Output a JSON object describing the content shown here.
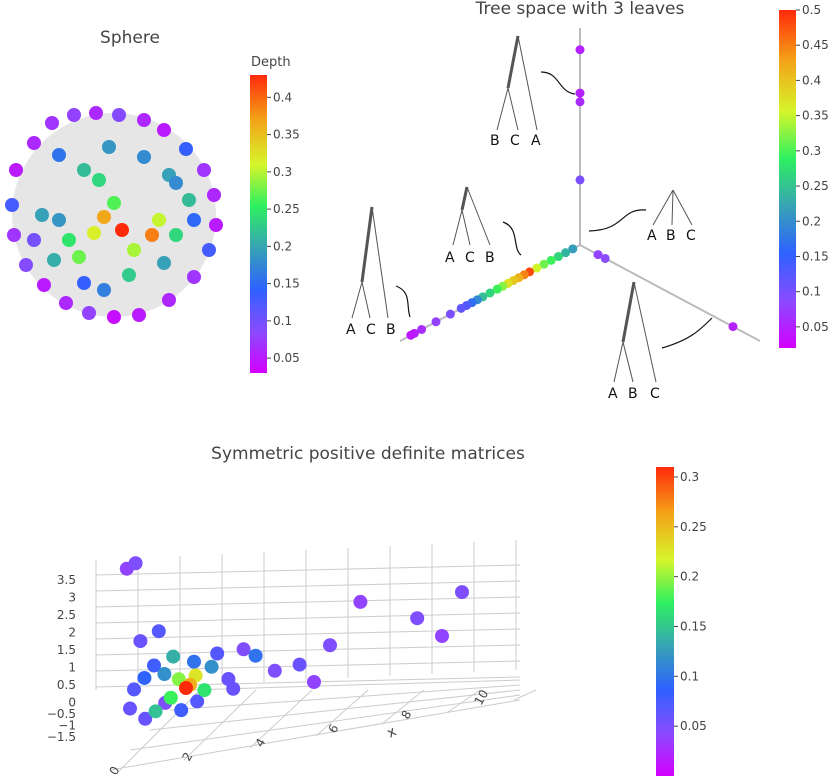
{
  "colorscale": [
    "#d400ff",
    "#8a4bff",
    "#2e62ff",
    "#37a3b5",
    "#2ef060",
    "#d6f52a",
    "#f4a318",
    "#ff2a0a"
  ],
  "chart_data": [
    {
      "type": "scatter",
      "title": "Sphere",
      "colorbar_title": "Depth",
      "colorbar_ticks": [
        "0.05",
        "0.1",
        "0.15",
        "0.2",
        "0.25",
        "0.3",
        "0.35",
        "0.4"
      ],
      "colorbar_range": [
        0.03,
        0.43
      ],
      "points": [
        {
          "x": -0.98,
          "y": 0.45,
          "depth": 0.05
        },
        {
          "x": -0.8,
          "y": 0.72,
          "depth": 0.06
        },
        {
          "x": -0.62,
          "y": 0.92,
          "depth": 0.07
        },
        {
          "x": -0.4,
          "y": 1.0,
          "depth": 0.08
        },
        {
          "x": -0.18,
          "y": 1.02,
          "depth": 0.06
        },
        {
          "x": 0.05,
          "y": 1.0,
          "depth": 0.09
        },
        {
          "x": 0.3,
          "y": 0.95,
          "depth": 0.06
        },
        {
          "x": 0.5,
          "y": 0.85,
          "depth": 0.05
        },
        {
          "x": 0.72,
          "y": 0.66,
          "depth": 0.14
        },
        {
          "x": 0.9,
          "y": 0.45,
          "depth": 0.07
        },
        {
          "x": 1.0,
          "y": 0.2,
          "depth": 0.06
        },
        {
          "x": 1.02,
          "y": -0.1,
          "depth": 0.05
        },
        {
          "x": 0.95,
          "y": -0.35,
          "depth": 0.13
        },
        {
          "x": 0.8,
          "y": -0.62,
          "depth": 0.07
        },
        {
          "x": 0.55,
          "y": -0.85,
          "depth": 0.06
        },
        {
          "x": 0.25,
          "y": -1.0,
          "depth": 0.05
        },
        {
          "x": 0.0,
          "y": -1.02,
          "depth": 0.04
        },
        {
          "x": -0.25,
          "y": -0.98,
          "depth": 0.08
        },
        {
          "x": -0.48,
          "y": -0.88,
          "depth": 0.06
        },
        {
          "x": -0.7,
          "y": -0.7,
          "depth": 0.05
        },
        {
          "x": -0.88,
          "y": -0.5,
          "depth": 0.09
        },
        {
          "x": -1.0,
          "y": -0.2,
          "depth": 0.07
        },
        {
          "x": -1.02,
          "y": 0.1,
          "depth": 0.13
        },
        {
          "x": -0.55,
          "y": 0.6,
          "depth": 0.16
        },
        {
          "x": -0.3,
          "y": 0.45,
          "depth": 0.22
        },
        {
          "x": -0.05,
          "y": 0.68,
          "depth": 0.19
        },
        {
          "x": 0.3,
          "y": 0.58,
          "depth": 0.18
        },
        {
          "x": 0.55,
          "y": 0.4,
          "depth": 0.2
        },
        {
          "x": 0.75,
          "y": 0.15,
          "depth": 0.22
        },
        {
          "x": -0.72,
          "y": 0.0,
          "depth": 0.2
        },
        {
          "x": -0.55,
          "y": -0.05,
          "depth": 0.19
        },
        {
          "x": -0.45,
          "y": -0.25,
          "depth": 0.25
        },
        {
          "x": -0.35,
          "y": -0.42,
          "depth": 0.28
        },
        {
          "x": -0.2,
          "y": -0.18,
          "depth": 0.32
        },
        {
          "x": -0.1,
          "y": -0.02,
          "depth": 0.37
        },
        {
          "x": 0.0,
          "y": 0.12,
          "depth": 0.27
        },
        {
          "x": 0.08,
          "y": -0.15,
          "depth": 0.43
        },
        {
          "x": 0.2,
          "y": -0.35,
          "depth": 0.3
        },
        {
          "x": 0.38,
          "y": -0.2,
          "depth": 0.39
        },
        {
          "x": 0.45,
          "y": -0.05,
          "depth": 0.31
        },
        {
          "x": 0.62,
          "y": -0.2,
          "depth": 0.24
        },
        {
          "x": 0.5,
          "y": -0.48,
          "depth": 0.2
        },
        {
          "x": 0.15,
          "y": -0.6,
          "depth": 0.23
        },
        {
          "x": -0.1,
          "y": -0.75,
          "depth": 0.17
        },
        {
          "x": -0.3,
          "y": -0.68,
          "depth": 0.14
        },
        {
          "x": -0.6,
          "y": -0.45,
          "depth": 0.21
        },
        {
          "x": -0.8,
          "y": -0.25,
          "depth": 0.1
        },
        {
          "x": 0.8,
          "y": -0.05,
          "depth": 0.15
        },
        {
          "x": 0.62,
          "y": 0.32,
          "depth": 0.18
        },
        {
          "x": -0.15,
          "y": 0.35,
          "depth": 0.24
        }
      ]
    },
    {
      "type": "scatter",
      "title": "Tree space with 3 leaves",
      "colorbar_ticks": [
        "0.05",
        "0.1",
        "0.15",
        "0.2",
        "0.25",
        "0.3",
        "0.35",
        "0.4",
        "0.45",
        "0.5"
      ],
      "colorbar_range": [
        0.02,
        0.5
      ],
      "leaf_labels": {
        "tree_top": [
          "B",
          "C",
          "A"
        ],
        "tree_left_upper": [
          "A",
          "C",
          "B"
        ],
        "tree_left_lower": [
          "A",
          "C",
          "B"
        ],
        "tree_star": [
          "A",
          "B",
          "C"
        ],
        "tree_bottom_right": [
          "A",
          "B",
          "C"
        ]
      },
      "points": [
        {
          "branch": "vertical",
          "t": 0.9,
          "depth": 0.05
        },
        {
          "branch": "vertical",
          "t": 0.7,
          "depth": 0.05
        },
        {
          "branch": "vertical",
          "t": 0.66,
          "depth": 0.06
        },
        {
          "branch": "vertical",
          "t": 0.3,
          "depth": 0.1
        },
        {
          "branch": "right",
          "t": 0.1,
          "depth": 0.08
        },
        {
          "branch": "right",
          "t": 0.14,
          "depth": 0.09
        },
        {
          "branch": "right",
          "t": 0.85,
          "depth": 0.05
        },
        {
          "branch": "left",
          "t": 0.04,
          "depth": 0.22
        },
        {
          "branch": "left",
          "t": 0.08,
          "depth": 0.24
        },
        {
          "branch": "left",
          "t": 0.12,
          "depth": 0.27
        },
        {
          "branch": "left",
          "t": 0.16,
          "depth": 0.3
        },
        {
          "branch": "left",
          "t": 0.2,
          "depth": 0.32
        },
        {
          "branch": "left",
          "t": 0.24,
          "depth": 0.36
        },
        {
          "branch": "left",
          "t": 0.28,
          "depth": 0.48
        },
        {
          "branch": "left",
          "t": 0.31,
          "depth": 0.45
        },
        {
          "branch": "left",
          "t": 0.34,
          "depth": 0.42
        },
        {
          "branch": "left",
          "t": 0.37,
          "depth": 0.4
        },
        {
          "branch": "left",
          "t": 0.4,
          "depth": 0.38
        },
        {
          "branch": "left",
          "t": 0.43,
          "depth": 0.33
        },
        {
          "branch": "left",
          "t": 0.46,
          "depth": 0.3
        },
        {
          "branch": "left",
          "t": 0.5,
          "depth": 0.27
        },
        {
          "branch": "left",
          "t": 0.54,
          "depth": 0.25
        },
        {
          "branch": "left",
          "t": 0.57,
          "depth": 0.2
        },
        {
          "branch": "left",
          "t": 0.6,
          "depth": 0.17
        },
        {
          "branch": "left",
          "t": 0.63,
          "depth": 0.13
        },
        {
          "branch": "left",
          "t": 0.66,
          "depth": 0.12
        },
        {
          "branch": "left",
          "t": 0.72,
          "depth": 0.1
        },
        {
          "branch": "left",
          "t": 0.8,
          "depth": 0.08
        },
        {
          "branch": "left",
          "t": 0.88,
          "depth": 0.06
        },
        {
          "branch": "left",
          "t": 0.92,
          "depth": 0.05
        },
        {
          "branch": "left",
          "t": 0.94,
          "depth": 0.04
        }
      ]
    },
    {
      "type": "scatter3d",
      "title": "Symmetric positive definite matrices",
      "xlabel": "x",
      "x_ticks": [
        "0",
        "2",
        "4",
        "6",
        "8",
        "10"
      ],
      "z_ticks": [
        "3.5",
        "3",
        "2.5",
        "2",
        "1.5",
        "1",
        "0.5",
        "0",
        "−0.5",
        "−1",
        "−1.5"
      ],
      "colorbar_ticks": [
        "0.05",
        "0.1",
        "0.15",
        "0.2",
        "0.25",
        "0.3"
      ],
      "colorbar_range": [
        0.0,
        0.31
      ],
      "points": [
        {
          "x": 0.2,
          "y": 0.3,
          "z": 3.6,
          "c": 0.04
        },
        {
          "x": 0.5,
          "y": 0.2,
          "z": 3.7,
          "c": 0.05
        },
        {
          "x": 0.6,
          "y": 0.4,
          "z": 1.8,
          "c": 0.06
        },
        {
          "x": 1.2,
          "y": 0.3,
          "z": 2.0,
          "c": 0.07
        },
        {
          "x": 1.0,
          "y": 0.5,
          "z": 1.2,
          "c": 0.08
        },
        {
          "x": 1.3,
          "y": 0.6,
          "z": 1.0,
          "c": 0.12
        },
        {
          "x": 1.6,
          "y": 0.5,
          "z": 1.4,
          "c": 0.14
        },
        {
          "x": 1.8,
          "y": 0.4,
          "z": 0.8,
          "c": 0.2
        },
        {
          "x": 2.0,
          "y": 0.5,
          "z": 0.6,
          "c": 0.31
        },
        {
          "x": 2.1,
          "y": 0.6,
          "z": 0.7,
          "c": 0.26
        },
        {
          "x": 2.3,
          "y": 0.5,
          "z": 0.9,
          "c": 0.23
        },
        {
          "x": 2.2,
          "y": 0.7,
          "z": 1.3,
          "c": 0.1
        },
        {
          "x": 2.6,
          "y": 0.4,
          "z": 0.5,
          "c": 0.17
        },
        {
          "x": 2.8,
          "y": 0.5,
          "z": 1.1,
          "c": 0.12
        },
        {
          "x": 3.0,
          "y": 0.4,
          "z": 1.4,
          "c": 0.07
        },
        {
          "x": 1.4,
          "y": 0.3,
          "z": 0.2,
          "c": 0.05
        },
        {
          "x": 0.8,
          "y": 0.2,
          "z": -0.2,
          "c": 0.06
        },
        {
          "x": 1.1,
          "y": 0.3,
          "z": 0.0,
          "c": 0.15
        },
        {
          "x": 1.9,
          "y": 0.3,
          "z": 0.0,
          "c": 0.08
        },
        {
          "x": 3.3,
          "y": 0.6,
          "z": 0.8,
          "c": 0.06
        },
        {
          "x": 3.8,
          "y": 0.5,
          "z": 1.5,
          "c": 0.05
        },
        {
          "x": 4.2,
          "y": 0.4,
          "z": 1.3,
          "c": 0.1
        },
        {
          "x": 4.8,
          "y": 0.4,
          "z": 0.9,
          "c": 0.05
        },
        {
          "x": 5.6,
          "y": 0.3,
          "z": 1.0,
          "c": 0.06
        },
        {
          "x": 6.0,
          "y": 0.5,
          "z": 0.6,
          "c": 0.04
        },
        {
          "x": 6.5,
          "y": 0.5,
          "z": 1.5,
          "c": 0.05
        },
        {
          "x": 7.4,
          "y": 0.7,
          "z": 2.6,
          "c": 0.04
        },
        {
          "x": 9.2,
          "y": 0.6,
          "z": 2.1,
          "c": 0.05
        },
        {
          "x": 10.0,
          "y": 0.5,
          "z": 1.6,
          "c": 0.04
        },
        {
          "x": 10.6,
          "y": 0.6,
          "z": 2.7,
          "c": 0.05
        },
        {
          "x": 0.4,
          "y": 0.4,
          "z": 0.6,
          "c": 0.07
        },
        {
          "x": 0.3,
          "y": 0.3,
          "z": 0.1,
          "c": 0.06
        },
        {
          "x": 0.7,
          "y": 0.5,
          "z": 0.9,
          "c": 0.09
        },
        {
          "x": 1.5,
          "y": 0.6,
          "z": 0.4,
          "c": 0.18
        },
        {
          "x": 2.4,
          "y": 0.3,
          "z": 0.2,
          "c": 0.07
        },
        {
          "x": 3.5,
          "y": 0.4,
          "z": 0.5,
          "c": 0.06
        }
      ]
    }
  ]
}
